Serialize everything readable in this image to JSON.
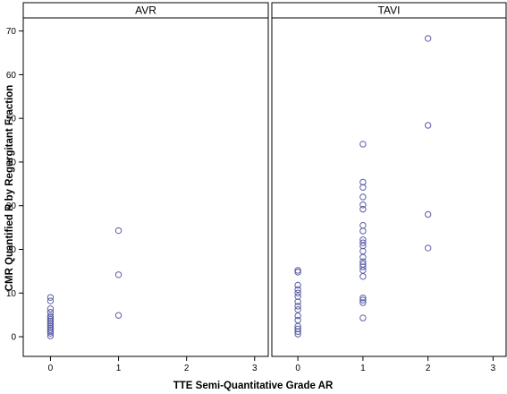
{
  "chart_data": {
    "type": "scatter",
    "xlabel": "TTE Semi-Quantitative Grade AR",
    "ylabel": "CMR Quantified R by Regurgitant Fraction",
    "xlim": [
      -0.4,
      3.2
    ],
    "ylim": [
      -4.5,
      73
    ],
    "xticks": [
      0,
      1,
      2,
      3
    ],
    "yticks": [
      0,
      10,
      20,
      30,
      40,
      50,
      60,
      70
    ],
    "marker": "open-circle",
    "marker_color": "#5b5ea6",
    "grid": false,
    "panels": [
      {
        "title": "AVR",
        "points": [
          [
            0,
            0.2
          ],
          [
            0,
            0.8
          ],
          [
            0,
            1.2
          ],
          [
            0,
            1.6
          ],
          [
            0,
            2.0
          ],
          [
            0,
            2.4
          ],
          [
            0,
            2.8
          ],
          [
            0,
            3.2
          ],
          [
            0,
            3.6
          ],
          [
            0,
            4.0
          ],
          [
            0,
            4.4
          ],
          [
            0,
            4.8
          ],
          [
            0,
            5.6
          ],
          [
            0,
            6.4
          ],
          [
            0,
            8.2
          ],
          [
            0,
            9.0
          ],
          [
            1,
            24.3
          ],
          [
            1,
            14.2
          ],
          [
            1,
            4.9
          ]
        ]
      },
      {
        "title": "TAVI",
        "points": [
          [
            0,
            0.6
          ],
          [
            0,
            1.2
          ],
          [
            0,
            1.8
          ],
          [
            0,
            2.4
          ],
          [
            0,
            3.8
          ],
          [
            0,
            4.8
          ],
          [
            0,
            6.2
          ],
          [
            0,
            7.0
          ],
          [
            0,
            8.0
          ],
          [
            0,
            9.2
          ],
          [
            0,
            10.0
          ],
          [
            0,
            10.8
          ],
          [
            0,
            11.8
          ],
          [
            0,
            14.8
          ],
          [
            0,
            15.2
          ],
          [
            1,
            4.3
          ],
          [
            1,
            7.8
          ],
          [
            1,
            8.4
          ],
          [
            1,
            8.9
          ],
          [
            1,
            13.8
          ],
          [
            1,
            15.2
          ],
          [
            1,
            16.0
          ],
          [
            1,
            16.6
          ],
          [
            1,
            17.2
          ],
          [
            1,
            18.2
          ],
          [
            1,
            19.6
          ],
          [
            1,
            20.8
          ],
          [
            1,
            21.5
          ],
          [
            1,
            22.2
          ],
          [
            1,
            24.2
          ],
          [
            1,
            25.5
          ],
          [
            1,
            29.2
          ],
          [
            1,
            30.2
          ],
          [
            1,
            32.0
          ],
          [
            1,
            34.2
          ],
          [
            1,
            35.4
          ],
          [
            1,
            44.1
          ],
          [
            2,
            68.3
          ],
          [
            2,
            48.4
          ],
          [
            2,
            28.0
          ],
          [
            2,
            20.3
          ]
        ]
      }
    ]
  }
}
